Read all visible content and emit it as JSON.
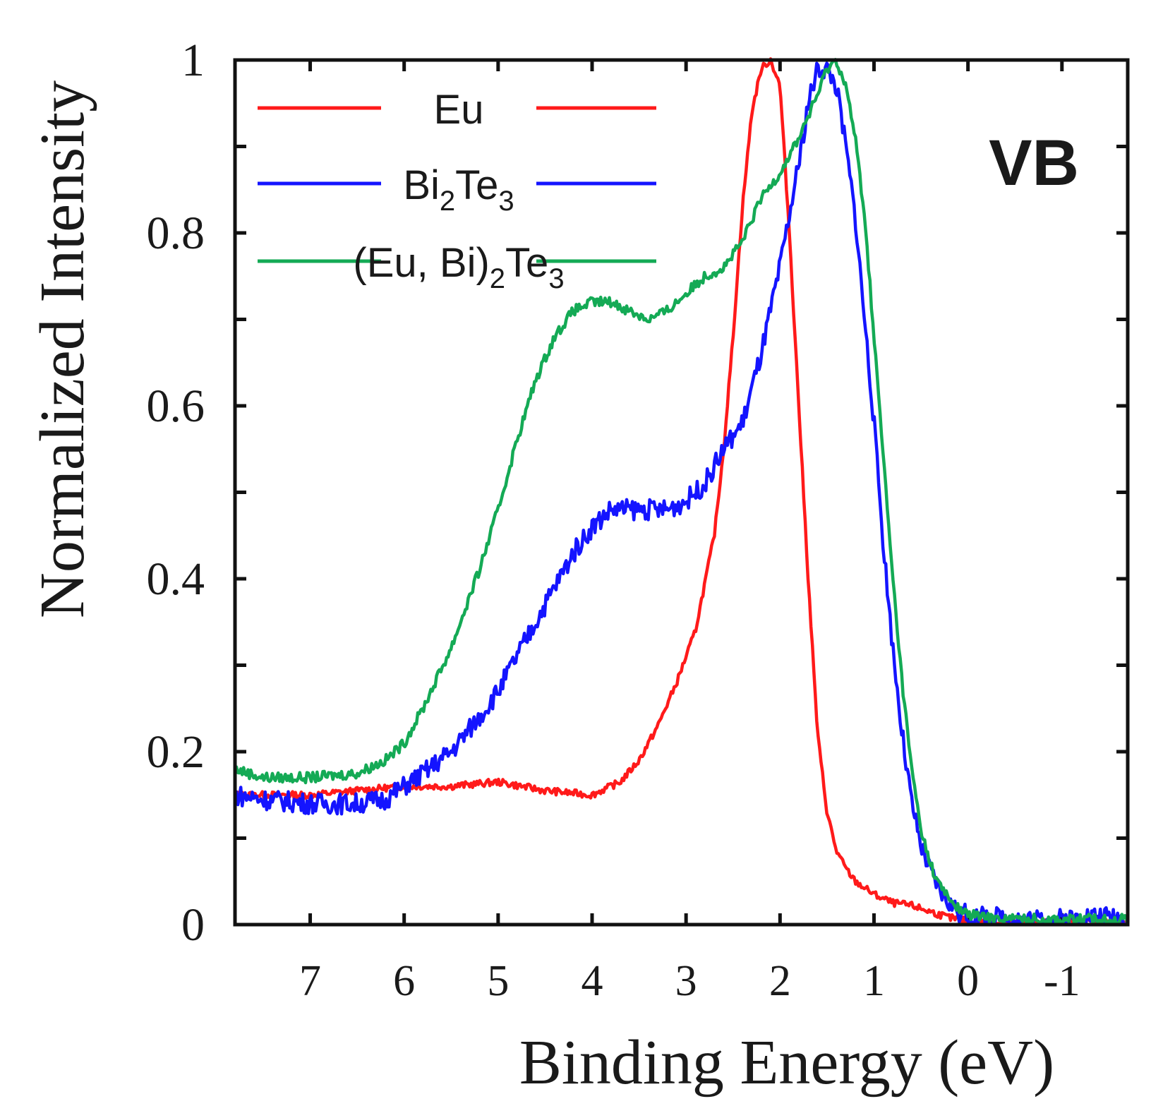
{
  "chart_data": {
    "type": "line",
    "xlabel": "Binding Energy (eV)",
    "ylabel": "Normalized Intensity",
    "annotation": "VB",
    "xlim": [
      7.8,
      -1.7
    ],
    "ylim": [
      0,
      1
    ],
    "x_ticks": [
      7,
      6,
      5,
      4,
      3,
      2,
      1,
      0,
      -1
    ],
    "x_tick_labels": [
      "7",
      "6",
      "5",
      "4",
      "3",
      "2",
      "1",
      "0",
      "-1"
    ],
    "y_ticks": [
      0,
      0.2,
      0.4,
      0.6,
      0.8,
      1
    ],
    "y_tick_labels": [
      "0",
      "0.2",
      "0.4",
      "0.6",
      "0.8",
      "1"
    ],
    "y_minor_ticks": [
      0.1,
      0.3,
      0.5,
      0.7,
      0.9
    ],
    "legend": {
      "position": "top-left",
      "entries": [
        {
          "series": "Eu",
          "base": "Eu",
          "parts": []
        },
        {
          "series": "Bi2Te3",
          "base": "",
          "parts": [
            {
              "t": "Bi",
              "sub": false
            },
            {
              "t": "2",
              "sub": true
            },
            {
              "t": "Te",
              "sub": false
            },
            {
              "t": "3",
              "sub": true
            }
          ]
        },
        {
          "series": "(Eu, Bi)2Te3",
          "base": "",
          "parts": [
            {
              "t": "(Eu, Bi)",
              "sub": false
            },
            {
              "t": "2",
              "sub": true
            },
            {
              "t": "Te",
              "sub": false
            },
            {
              "t": "3",
              "sub": true
            }
          ]
        }
      ]
    },
    "series": [
      {
        "name": "Eu",
        "color": "#ff1a1a",
        "noise": 0.004,
        "x": [
          7.8,
          7.5,
          7.0,
          6.5,
          6.0,
          5.5,
          5.0,
          4.5,
          4.0,
          3.7,
          3.5,
          3.3,
          3.1,
          2.9,
          2.7,
          2.6,
          2.5,
          2.4,
          2.3,
          2.2,
          2.1,
          2.0,
          1.9,
          1.8,
          1.7,
          1.6,
          1.5,
          1.4,
          1.3,
          1.2,
          1.0,
          0.8,
          0.6,
          0.4,
          0.2,
          0.0,
          -0.3,
          -0.6,
          -1.0,
          -1.7
        ],
        "y": [
          0.15,
          0.15,
          0.15,
          0.155,
          0.16,
          0.16,
          0.165,
          0.155,
          0.15,
          0.165,
          0.19,
          0.23,
          0.28,
          0.34,
          0.45,
          0.55,
          0.68,
          0.83,
          0.94,
          0.99,
          1.0,
          0.97,
          0.8,
          0.6,
          0.4,
          0.22,
          0.13,
          0.085,
          0.065,
          0.05,
          0.035,
          0.025,
          0.022,
          0.015,
          0.008,
          0.004,
          0.003,
          0.003,
          0.003,
          0.003
        ]
      },
      {
        "name": "Bi2Te3",
        "color": "#1414ff",
        "noise": 0.012,
        "x": [
          7.8,
          7.5,
          7.0,
          6.5,
          6.2,
          6.0,
          5.8,
          5.5,
          5.2,
          5.0,
          4.8,
          4.6,
          4.4,
          4.2,
          4.0,
          3.8,
          3.6,
          3.4,
          3.2,
          3.0,
          2.8,
          2.6,
          2.4,
          2.2,
          2.0,
          1.8,
          1.7,
          1.6,
          1.5,
          1.4,
          1.3,
          1.2,
          1.1,
          1.0,
          0.9,
          0.8,
          0.7,
          0.6,
          0.5,
          0.4,
          0.3,
          0.2,
          0.1,
          0.0,
          -0.2,
          -0.5,
          -1.0,
          -1.3,
          -1.7
        ],
        "y": [
          0.15,
          0.145,
          0.14,
          0.14,
          0.145,
          0.16,
          0.175,
          0.2,
          0.24,
          0.27,
          0.31,
          0.35,
          0.39,
          0.43,
          0.46,
          0.48,
          0.48,
          0.48,
          0.48,
          0.49,
          0.51,
          0.55,
          0.58,
          0.66,
          0.76,
          0.88,
          0.95,
          0.99,
          0.99,
          0.97,
          0.9,
          0.82,
          0.7,
          0.58,
          0.44,
          0.32,
          0.22,
          0.14,
          0.09,
          0.06,
          0.04,
          0.025,
          0.015,
          0.01,
          0.008,
          0.007,
          0.006,
          0.01,
          0.008
        ]
      },
      {
        "name": "(Eu, Bi)2Te3",
        "color": "#14aa55",
        "noise": 0.006,
        "x": [
          7.8,
          7.5,
          7.0,
          6.5,
          6.2,
          6.0,
          5.8,
          5.5,
          5.2,
          5.0,
          4.8,
          4.6,
          4.4,
          4.2,
          4.0,
          3.8,
          3.6,
          3.4,
          3.2,
          3.0,
          2.8,
          2.6,
          2.4,
          2.2,
          2.0,
          1.8,
          1.6,
          1.5,
          1.4,
          1.3,
          1.2,
          1.1,
          1.0,
          0.9,
          0.8,
          0.7,
          0.6,
          0.5,
          0.4,
          0.3,
          0.2,
          0.1,
          0.0,
          -0.2,
          -0.5,
          -1.0,
          -1.7
        ],
        "y": [
          0.18,
          0.17,
          0.17,
          0.175,
          0.19,
          0.21,
          0.25,
          0.32,
          0.41,
          0.48,
          0.56,
          0.63,
          0.68,
          0.71,
          0.72,
          0.72,
          0.71,
          0.7,
          0.71,
          0.73,
          0.75,
          0.76,
          0.79,
          0.84,
          0.87,
          0.91,
          0.96,
          0.99,
          1.0,
          0.97,
          0.91,
          0.82,
          0.68,
          0.54,
          0.4,
          0.28,
          0.18,
          0.11,
          0.07,
          0.045,
          0.03,
          0.018,
          0.012,
          0.008,
          0.007,
          0.006,
          0.006
        ]
      }
    ]
  }
}
